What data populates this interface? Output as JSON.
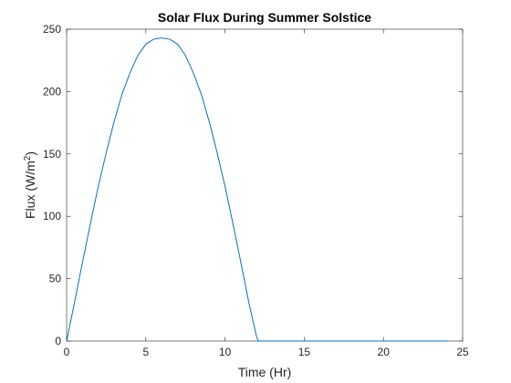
{
  "chart_data": {
    "type": "line",
    "title": "Solar Flux During Summer Solstice",
    "xlabel": "Time (Hr)",
    "ylabel_base": "Flux (W/m",
    "ylabel_sup": "2",
    "ylabel_end": ")",
    "xlim": [
      0,
      25
    ],
    "ylim": [
      0,
      250
    ],
    "xticks": [
      0,
      5,
      10,
      15,
      20,
      25
    ],
    "yticks": [
      0,
      50,
      100,
      150,
      200,
      250
    ],
    "grid": false,
    "series_color": "#0072BD",
    "series": [
      {
        "x": [
          0,
          0.5,
          1,
          1.5,
          2,
          2.5,
          3,
          3.5,
          4,
          4.5,
          5,
          5.5,
          6,
          6.5,
          7,
          7.5,
          8,
          8.5,
          9,
          9.5,
          10,
          10.5,
          11,
          11.5,
          12,
          12.1,
          13,
          14,
          15,
          16,
          17,
          18,
          19,
          20,
          21,
          22,
          23,
          24
        ],
        "y": [
          0,
          31,
          63,
          94,
          124,
          151,
          176,
          198,
          215,
          229,
          238,
          242,
          243,
          242,
          238,
          229,
          215,
          198,
          176,
          151,
          124,
          94,
          63,
          31,
          3,
          0,
          0,
          0,
          0,
          0,
          0,
          0,
          0,
          0,
          0,
          0,
          0,
          0
        ]
      }
    ]
  }
}
